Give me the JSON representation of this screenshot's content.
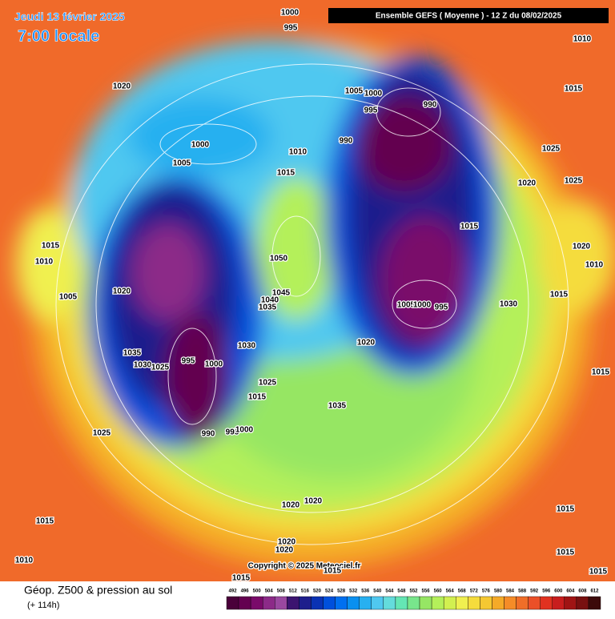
{
  "header": {
    "date": "Jeudi 13 février 2025",
    "time": "7:00 locale",
    "model": "Ensemble GEFS  ( Moyenne )  -  12 Z du 08/02/2025"
  },
  "isobars": [
    "1000",
    "995",
    "1010",
    "1020",
    "1005",
    "1000",
    "990",
    "995",
    "1015",
    "1000",
    "1005",
    "1010",
    "990",
    "1025",
    "1015",
    "1020",
    "1025",
    "1015",
    "1010",
    "1050",
    "1015",
    "1020",
    "1010",
    "1020",
    "1045",
    "1005",
    "1040",
    "1035",
    "1005",
    "1000",
    "995",
    "1015",
    "1030",
    "1020",
    "1030",
    "1035",
    "995",
    "1000",
    "1030",
    "1025",
    "1025",
    "1015",
    "1015",
    "1035",
    "990",
    "995",
    "1000",
    "1025",
    "1020",
    "1020",
    "1015",
    "1015",
    "1020",
    "1020",
    "1010",
    "1015",
    "1015",
    "1015",
    "1015"
  ],
  "copyright": "Copyright © 2025 Meteociel.fr",
  "legend": {
    "title": "Géop. Z500 & pression au sol",
    "lead": "(+ 114h)",
    "scale": [
      492,
      496,
      500,
      504,
      508,
      512,
      516,
      520,
      524,
      528,
      532,
      536,
      540,
      544,
      548,
      552,
      556,
      560,
      564,
      568,
      572,
      576,
      580,
      584,
      588,
      592,
      596,
      600,
      604,
      608,
      612
    ],
    "colors": [
      "#4a003a",
      "#640050",
      "#7a0a6a",
      "#8c2a88",
      "#9a48a0",
      "#3c1470",
      "#1e1e8c",
      "#0a32b4",
      "#0050dc",
      "#0070f0",
      "#0a90f0",
      "#28b0f0",
      "#50c8f0",
      "#64dcdc",
      "#64e6b4",
      "#78e68c",
      "#96e664",
      "#b4f05a",
      "#d2f050",
      "#f0f050",
      "#f5dc3c",
      "#f5c832",
      "#f5aa28",
      "#f58c28",
      "#f06e28",
      "#eb5028",
      "#e13220",
      "#c81e1e",
      "#a01414",
      "#781010",
      "#3c0a0a"
    ]
  }
}
